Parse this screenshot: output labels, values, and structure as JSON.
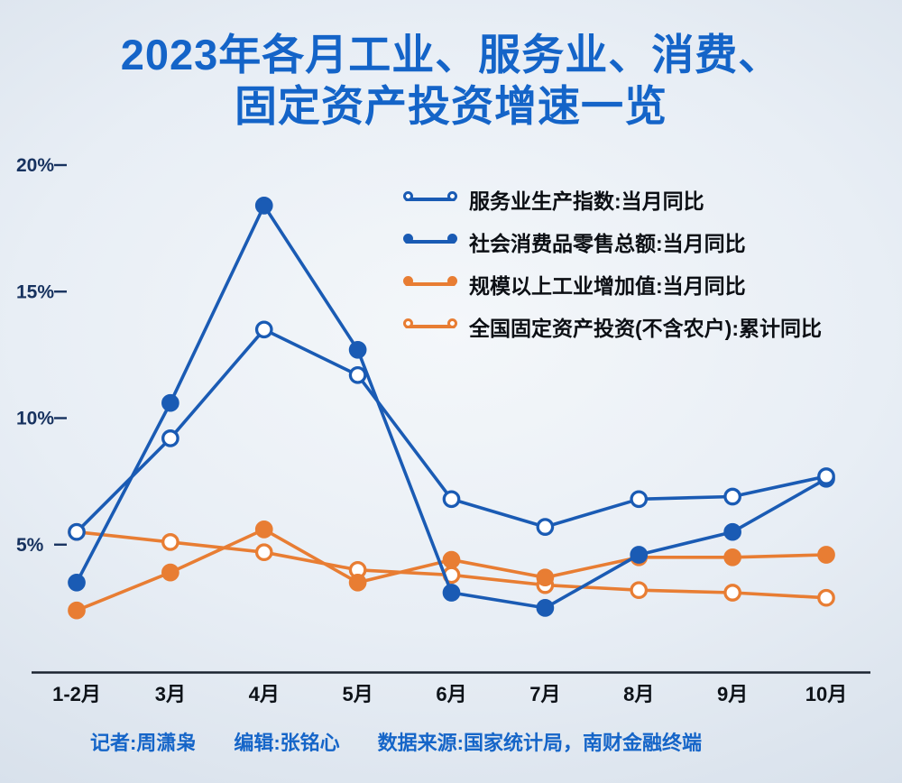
{
  "title": {
    "line1": "2023年各月工业、服务业、消费、",
    "line2": "固定资产投资增速一览"
  },
  "colors": {
    "blue": "#1a5bb4",
    "orange": "#e87d33",
    "title": "#1464c8",
    "axis_text": "#17325f",
    "axis_line": "#1b2430"
  },
  "chart_data": {
    "type": "line",
    "title": "2023年各月工业、服务业、消费、固定资产投资增速一览",
    "categories": [
      "1-2月",
      "3月",
      "4月",
      "5月",
      "6月",
      "7月",
      "8月",
      "9月",
      "10月"
    ],
    "yticks": [
      "5%",
      "10%",
      "15%",
      "20%"
    ],
    "ylim": [
      0,
      21
    ],
    "unit": "%",
    "grid": false,
    "legend_position": "upper-right",
    "series": [
      {
        "name": "服务业生产指数:当月同比",
        "color": "blue",
        "marker": "open",
        "values": [
          5.5,
          9.2,
          13.5,
          11.7,
          6.8,
          5.7,
          6.8,
          6.9,
          7.7
        ]
      },
      {
        "name": "社会消费品零售总额:当月同比",
        "color": "blue",
        "marker": "filled",
        "values": [
          3.5,
          10.6,
          18.4,
          12.7,
          3.1,
          2.5,
          4.6,
          5.5,
          7.6
        ]
      },
      {
        "name": "规模以上工业增加值:当月同比",
        "color": "orange",
        "marker": "filled",
        "values": [
          2.4,
          3.9,
          5.6,
          3.5,
          4.4,
          3.7,
          4.5,
          4.5,
          4.6
        ]
      },
      {
        "name": "全国固定资产投资(不含农户):累计同比",
        "color": "orange",
        "marker": "open",
        "values": [
          5.5,
          5.1,
          4.7,
          4.0,
          3.8,
          3.4,
          3.2,
          3.1,
          2.9
        ]
      }
    ]
  },
  "footer": {
    "reporter": "记者:周潇枭",
    "editor": "编辑:张铭心",
    "source": "数据来源:国家统计局，南财金融终端"
  }
}
